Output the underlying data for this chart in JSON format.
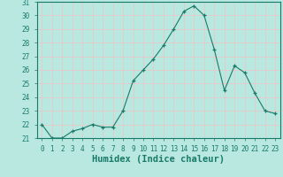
{
  "x": [
    0,
    1,
    2,
    3,
    4,
    5,
    6,
    7,
    8,
    9,
    10,
    11,
    12,
    13,
    14,
    15,
    16,
    17,
    18,
    19,
    20,
    21,
    22,
    23
  ],
  "y": [
    22,
    21,
    21,
    21.5,
    21.7,
    22,
    21.8,
    21.8,
    23,
    25.2,
    26,
    26.8,
    27.8,
    29,
    30.3,
    30.7,
    30,
    27.5,
    24.5,
    26.3,
    25.8,
    24.3,
    23,
    22.8
  ],
  "xlabel": "Humidex (Indice chaleur)",
  "ylim": [
    21,
    31
  ],
  "xlim": [
    0,
    23
  ],
  "yticks": [
    21,
    22,
    23,
    24,
    25,
    26,
    27,
    28,
    29,
    30,
    31
  ],
  "xticks": [
    0,
    1,
    2,
    3,
    4,
    5,
    6,
    7,
    8,
    9,
    10,
    11,
    12,
    13,
    14,
    15,
    16,
    17,
    18,
    19,
    20,
    21,
    22,
    23
  ],
  "line_color": "#1a7a6a",
  "marker": "+",
  "bg_color": "#b8e8e0",
  "grid_color": "#e8c8c8",
  "axis_label_color": "#1a7a6a",
  "tick_fontsize": 5.5,
  "xlabel_fontsize": 7.5
}
